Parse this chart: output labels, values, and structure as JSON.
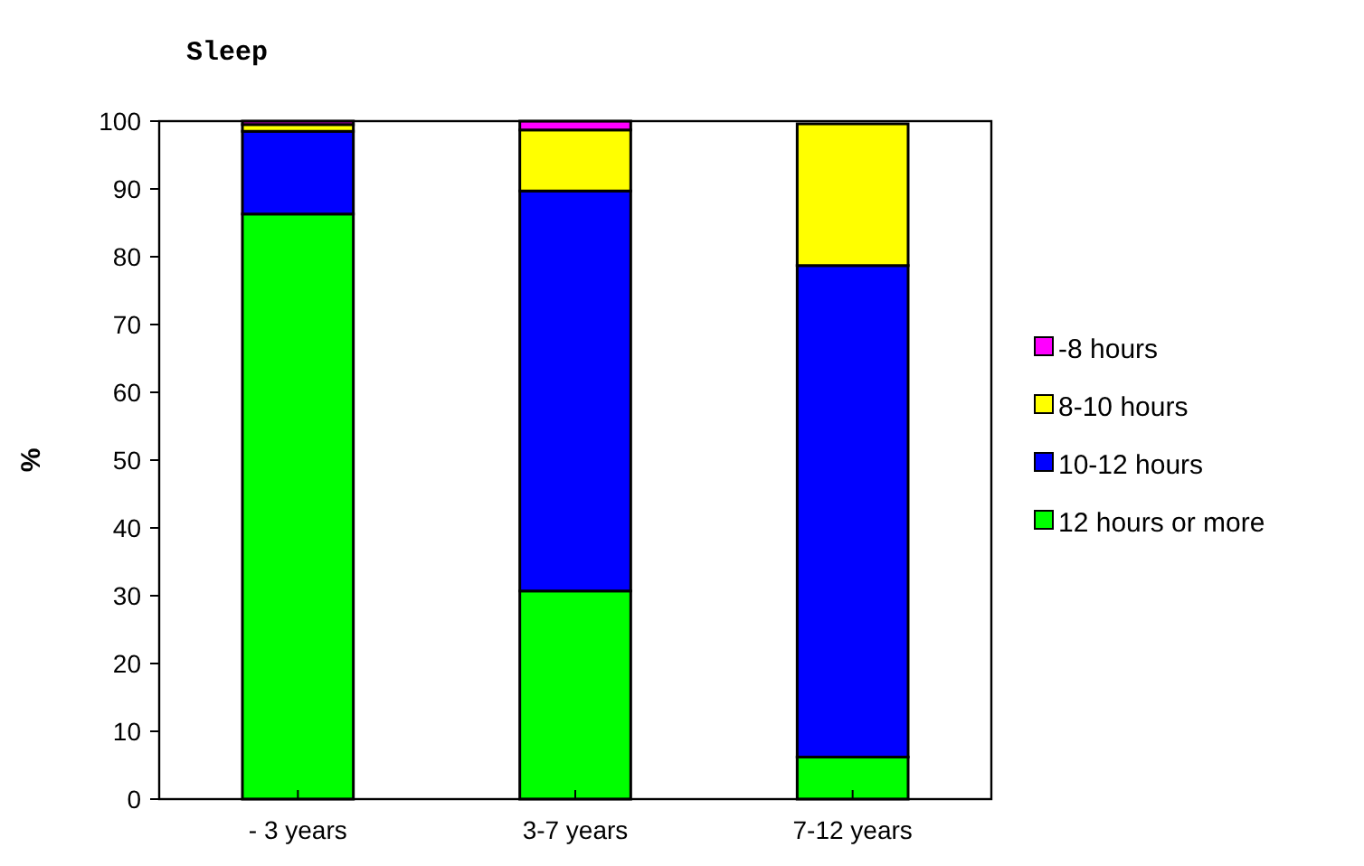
{
  "chart_data": {
    "type": "bar",
    "stacked": true,
    "title": "Sleep",
    "ylabel": "%",
    "categories": [
      "- 3 years",
      "3-7 years",
      "7-12 years"
    ],
    "series": [
      {
        "name": "12 hours or more",
        "color": "#00ff00",
        "values": [
          86.3,
          30.7,
          6.2
        ]
      },
      {
        "name": "10-12 hours",
        "color": "#0000ff",
        "values": [
          12.2,
          59.0,
          72.5
        ]
      },
      {
        "name": "8-10 hours",
        "color": "#ffff00",
        "values": [
          1.0,
          9.0,
          20.9
        ]
      },
      {
        "name": "-8 hours",
        "color": "#ff00ff",
        "values": [
          0.5,
          1.3,
          null
        ]
      }
    ],
    "ylim": [
      0,
      100
    ],
    "yticks": [
      0,
      10,
      20,
      30,
      40,
      50,
      60,
      70,
      80,
      90,
      100
    ],
    "grid": false,
    "legend": "right"
  }
}
